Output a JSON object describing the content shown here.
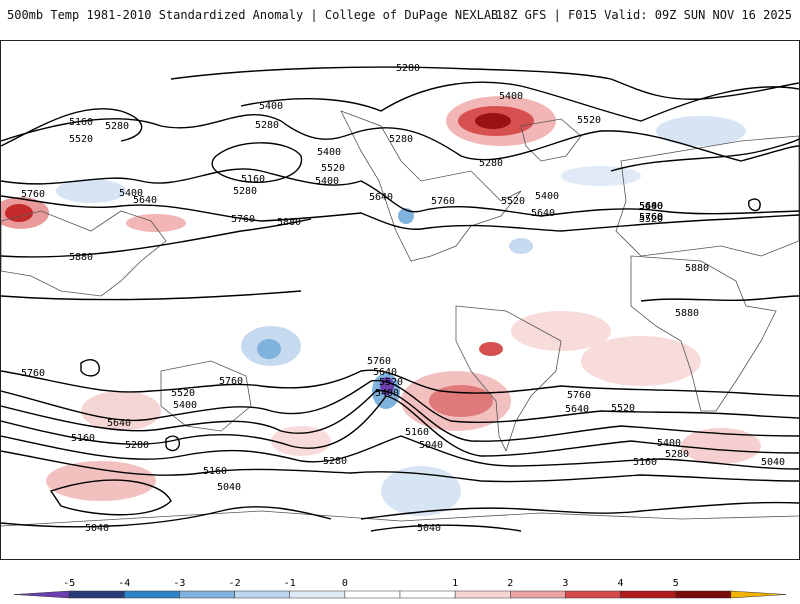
{
  "header": {
    "left_title": "500mb Temp 1981-2010 Standardized Anomaly | College of DuPage NEXLAB",
    "right_title": "18Z GFS | F015 Valid: 09Z SUN NOV 16 2025"
  },
  "map": {
    "projection": "global cylindrical",
    "field": "500mb standardized temperature anomaly with geopotential height contours",
    "contour_labels": [
      "5280",
      "5400",
      "5400",
      "5160",
      "5280",
      "5520",
      "5400",
      "5280",
      "5760",
      "5640",
      "5880",
      "5160",
      "5280",
      "5400",
      "5520",
      "5640",
      "5760",
      "5880",
      "5280",
      "5400",
      "5520",
      "5640",
      "5760",
      "5400",
      "5520",
      "5280",
      "5400",
      "5520",
      "5640",
      "5760",
      "5640",
      "5760",
      "5880",
      "5880",
      "5760",
      "5640",
      "5520",
      "5400",
      "5760",
      "5760",
      "5520",
      "5400",
      "5640",
      "5280",
      "5160",
      "5040",
      "5160",
      "5280",
      "5160",
      "5040",
      "5520",
      "5640",
      "5760",
      "5400",
      "5280",
      "5160",
      "5040",
      "5040",
      "5040"
    ]
  },
  "colorbar": {
    "ticks": [
      "-5",
      "-4",
      "-3",
      "-2",
      "-1",
      "0",
      "1",
      "2",
      "3",
      "4",
      "5"
    ],
    "colors": [
      "#6a3fb0",
      "#2a3a78",
      "#2f82c8",
      "#7fb2dc",
      "#bcd6ee",
      "#dfeaf6",
      "#ffffff",
      "#ffffff",
      "#f6d5d5",
      "#eba3a3",
      "#d54a4a",
      "#b01c1c",
      "#7a0b0b",
      "#f2b200"
    ]
  }
}
